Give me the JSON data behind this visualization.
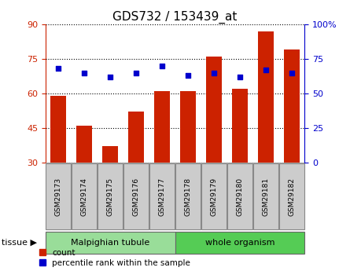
{
  "title": "GDS732 / 153439_at",
  "samples": [
    "GSM29173",
    "GSM29174",
    "GSM29175",
    "GSM29176",
    "GSM29177",
    "GSM29178",
    "GSM29179",
    "GSM29180",
    "GSM29181",
    "GSM29182"
  ],
  "counts": [
    59,
    46,
    37,
    52,
    61,
    61,
    76,
    62,
    87,
    79
  ],
  "percentiles": [
    68,
    65,
    62,
    65,
    70,
    63,
    65,
    62,
    67,
    65
  ],
  "ylim_left": [
    30,
    90
  ],
  "ylim_right": [
    0,
    100
  ],
  "yticks_left": [
    30,
    45,
    60,
    75,
    90
  ],
  "yticks_right": [
    0,
    25,
    50,
    75,
    100
  ],
  "ytick_labels_right": [
    "0",
    "25",
    "50",
    "75",
    "100%"
  ],
  "bar_color": "#cc2200",
  "dot_color": "#0000cc",
  "bar_bottom": 30,
  "tissue_groups": [
    {
      "label": "Malpighian tubule",
      "indices": [
        0,
        1,
        2,
        3,
        4
      ],
      "color": "#99dd99"
    },
    {
      "label": "whole organism",
      "indices": [
        5,
        6,
        7,
        8,
        9
      ],
      "color": "#55cc55"
    }
  ],
  "legend_count_label": "count",
  "legend_percentile_label": "percentile rank within the sample",
  "title_fontsize": 11,
  "tick_fontsize": 8,
  "background_color": "#ffffff",
  "plot_bg_color": "#ffffff",
  "tissue_label": "tissue",
  "left_axis_color": "#cc2200",
  "right_axis_color": "#0000cc",
  "sample_box_color": "#cccccc",
  "sample_box_edge_color": "#888888"
}
